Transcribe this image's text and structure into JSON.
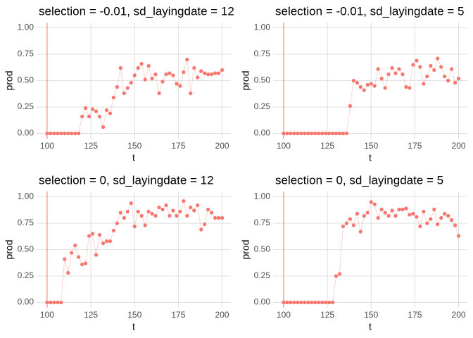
{
  "chart_data": [
    {
      "type": "line",
      "title": "selection = -0.01, sd_layingdate = 12",
      "x_label": "t",
      "y_label": "prod",
      "x": [
        100,
        102,
        104,
        106,
        108,
        110,
        112,
        114,
        116,
        118,
        120,
        122,
        124,
        126,
        128,
        130,
        132,
        134,
        136,
        138,
        140,
        142,
        144,
        146,
        148,
        150,
        152,
        154,
        156,
        158,
        160,
        162,
        164,
        166,
        168,
        170,
        172,
        174,
        176,
        178,
        180,
        182,
        184,
        186,
        188,
        190,
        192,
        194,
        196,
        198,
        200
      ],
      "series": [
        {
          "name": "prod",
          "color": "#F8766D",
          "values": [
            0,
            0,
            0,
            0,
            0,
            0,
            0,
            0,
            0,
            0,
            0.16,
            0.24,
            0.16,
            0.23,
            0.21,
            0.16,
            0.06,
            0.22,
            0.19,
            0.34,
            0.44,
            0.62,
            0.38,
            0.43,
            0.48,
            0.55,
            0.62,
            0.66,
            0.51,
            0.64,
            0.52,
            0.56,
            0.38,
            0.49,
            0.56,
            0.57,
            0.55,
            0.47,
            0.45,
            0.58,
            0.7,
            0.38,
            0.62,
            0.53,
            0.59,
            0.57,
            0.56,
            0.56,
            0.57,
            0.57,
            0.6
          ]
        }
      ],
      "vline": 100,
      "xlim": [
        94,
        205
      ],
      "ylim": [
        -0.05,
        1.05
      ],
      "xticks": [
        100,
        125,
        150,
        175,
        200
      ],
      "yticks": [
        {
          "value": 0,
          "label": "0.00"
        },
        {
          "value": 0.25,
          "label": "0.25"
        },
        {
          "value": 0.5,
          "label": "0.50"
        },
        {
          "value": 0.75,
          "label": "0.75"
        },
        {
          "value": 1,
          "label": "1.00"
        }
      ],
      "grid": true
    },
    {
      "type": "line",
      "title": "selection = -0.01, sd_layingdate = 5",
      "x_label": "t",
      "y_label": "prod",
      "x": [
        100,
        102,
        104,
        106,
        108,
        110,
        112,
        114,
        116,
        118,
        120,
        122,
        124,
        126,
        128,
        130,
        132,
        134,
        136,
        138,
        140,
        142,
        144,
        146,
        148,
        150,
        152,
        154,
        156,
        158,
        160,
        162,
        164,
        166,
        168,
        170,
        172,
        174,
        176,
        178,
        180,
        182,
        184,
        186,
        188,
        190,
        192,
        194,
        196,
        198,
        200
      ],
      "series": [
        {
          "name": "prod",
          "color": "#F8766D",
          "values": [
            0,
            0,
            0,
            0,
            0,
            0,
            0,
            0,
            0,
            0,
            0,
            0,
            0,
            0,
            0,
            0,
            0,
            0,
            0,
            0.26,
            0.5,
            0.48,
            0.44,
            0.41,
            0.46,
            0.47,
            0.45,
            0.61,
            0.52,
            0.43,
            0.56,
            0.62,
            0.57,
            0.61,
            0.56,
            0.44,
            0.43,
            0.65,
            0.69,
            0.63,
            0.47,
            0.54,
            0.64,
            0.6,
            0.71,
            0.63,
            0.54,
            0.5,
            0.61,
            0.48,
            0.52
          ]
        }
      ],
      "vline": 100,
      "xlim": [
        94,
        205
      ],
      "ylim": [
        -0.05,
        1.05
      ],
      "xticks": [
        100,
        125,
        150,
        175,
        200
      ],
      "yticks": [
        {
          "value": 0,
          "label": "0.00"
        },
        {
          "value": 0.25,
          "label": "0.25"
        },
        {
          "value": 0.5,
          "label": "0.50"
        },
        {
          "value": 0.75,
          "label": "0.75"
        },
        {
          "value": 1,
          "label": "1.00"
        }
      ],
      "grid": true
    },
    {
      "type": "line",
      "title": "selection = 0, sd_layingdate = 12",
      "x_label": "t",
      "y_label": "prod",
      "x": [
        100,
        102,
        104,
        106,
        108,
        110,
        112,
        114,
        116,
        118,
        120,
        122,
        124,
        126,
        128,
        130,
        132,
        134,
        136,
        138,
        140,
        142,
        144,
        146,
        148,
        150,
        152,
        154,
        156,
        158,
        160,
        162,
        164,
        166,
        168,
        170,
        172,
        174,
        176,
        178,
        180,
        182,
        184,
        186,
        188,
        190,
        192,
        194,
        196,
        198,
        200
      ],
      "series": [
        {
          "name": "prod",
          "color": "#F8766D",
          "values": [
            0,
            0,
            0,
            0,
            0,
            0.41,
            0.28,
            0.47,
            0.54,
            0.43,
            0.36,
            0.37,
            0.63,
            0.65,
            0.45,
            0.64,
            0.56,
            0.58,
            0.58,
            0.68,
            0.75,
            0.85,
            0.8,
            0.86,
            0.94,
            0.72,
            0.86,
            0.82,
            0.73,
            0.86,
            0.84,
            0.82,
            0.9,
            0.88,
            0.92,
            0.82,
            0.87,
            0.82,
            0.86,
            0.96,
            0.82,
            0.9,
            0.87,
            0.92,
            0.69,
            0.74,
            0.88,
            0.85,
            0.8,
            0.8,
            0.8
          ]
        }
      ],
      "vline": 100,
      "xlim": [
        94,
        205
      ],
      "ylim": [
        -0.05,
        1.05
      ],
      "xticks": [
        100,
        125,
        150,
        175,
        200
      ],
      "yticks": [
        {
          "value": 0,
          "label": "0.00"
        },
        {
          "value": 0.25,
          "label": "0.25"
        },
        {
          "value": 0.5,
          "label": "0.50"
        },
        {
          "value": 0.75,
          "label": "0.75"
        },
        {
          "value": 1,
          "label": "1.00"
        }
      ],
      "grid": true
    },
    {
      "type": "line",
      "title": "selection = 0, sd_layingdate = 5",
      "x_label": "t",
      "y_label": "prod",
      "x": [
        100,
        102,
        104,
        106,
        108,
        110,
        112,
        114,
        116,
        118,
        120,
        122,
        124,
        126,
        128,
        130,
        132,
        134,
        136,
        138,
        140,
        142,
        144,
        146,
        148,
        150,
        152,
        154,
        156,
        158,
        160,
        162,
        164,
        166,
        168,
        170,
        172,
        174,
        176,
        178,
        180,
        182,
        184,
        186,
        188,
        190,
        192,
        194,
        196,
        198,
        200
      ],
      "series": [
        {
          "name": "prod",
          "color": "#F8766D",
          "values": [
            0,
            0,
            0,
            0,
            0,
            0,
            0,
            0,
            0,
            0,
            0,
            0,
            0,
            0,
            0,
            0.25,
            0.27,
            0.72,
            0.75,
            0.79,
            0.73,
            0.84,
            0.67,
            0.82,
            0.85,
            0.95,
            0.93,
            0.8,
            0.88,
            0.85,
            0.82,
            0.87,
            0.82,
            0.88,
            0.88,
            0.89,
            0.83,
            0.84,
            0.81,
            0.72,
            0.86,
            0.75,
            0.79,
            0.88,
            0.74,
            0.8,
            0.84,
            0.82,
            0.78,
            0.73,
            0.63
          ]
        }
      ],
      "vline": 100,
      "xlim": [
        94,
        205
      ],
      "ylim": [
        -0.05,
        1.05
      ],
      "xticks": [
        100,
        125,
        150,
        175,
        200
      ],
      "yticks": [
        {
          "value": 0,
          "label": "0.00"
        },
        {
          "value": 0.25,
          "label": "0.25"
        },
        {
          "value": 0.5,
          "label": "0.50"
        },
        {
          "value": 0.75,
          "label": "0.75"
        },
        {
          "value": 1,
          "label": "1.00"
        }
      ],
      "grid": true
    }
  ]
}
